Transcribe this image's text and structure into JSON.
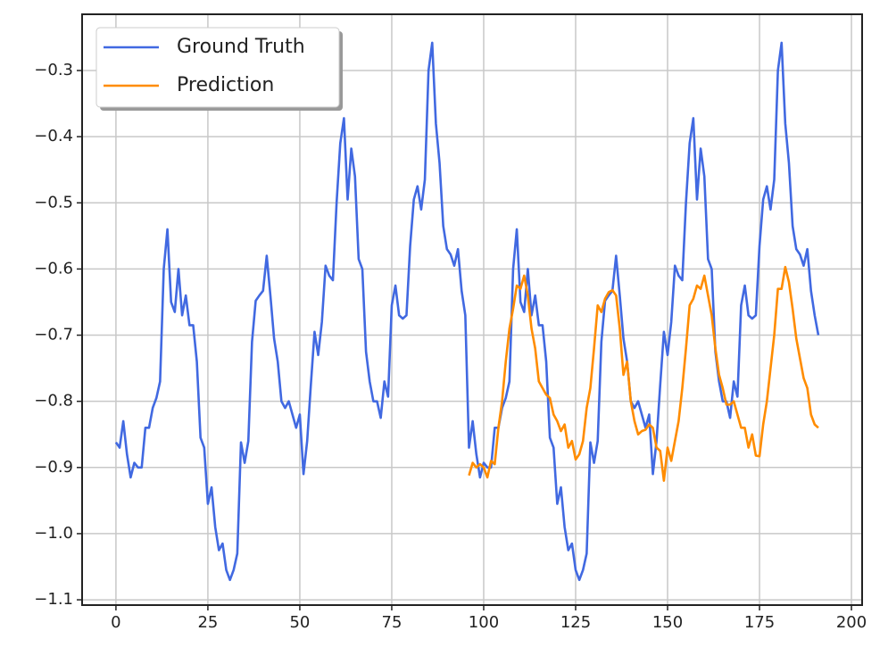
{
  "chart_data": {
    "type": "line",
    "x": [
      0,
      1,
      2,
      3,
      4,
      5,
      6,
      7,
      8,
      9,
      10,
      11,
      12,
      13,
      14,
      15,
      16,
      17,
      18,
      19,
      20,
      21,
      22,
      23,
      24,
      25,
      26,
      27,
      28,
      29,
      30,
      31,
      32,
      33,
      34,
      35,
      36,
      37,
      38,
      39,
      40,
      41,
      42,
      43,
      44,
      45,
      46,
      47,
      48,
      49,
      50,
      51,
      52,
      53,
      54,
      55,
      56,
      57,
      58,
      59,
      60,
      61,
      62,
      63,
      64,
      65,
      66,
      67,
      68,
      69,
      70,
      71,
      72,
      73,
      74,
      75,
      76,
      77,
      78,
      79,
      80,
      81,
      82,
      83,
      84,
      85,
      86,
      87,
      88,
      89,
      90,
      91,
      92,
      93,
      94,
      95,
      96,
      97,
      98,
      99,
      100,
      101,
      102,
      103,
      104,
      105,
      106,
      107,
      108,
      109,
      110,
      111,
      112,
      113,
      114,
      115,
      116,
      117,
      118,
      119,
      120,
      121,
      122,
      123,
      124,
      125,
      126,
      127,
      128,
      129,
      130,
      131,
      132,
      133,
      134,
      135,
      136,
      137,
      138,
      139,
      140,
      141,
      142,
      143,
      144,
      145,
      146,
      147,
      148,
      149,
      150,
      151,
      152,
      153,
      154,
      155,
      156,
      157,
      158,
      159,
      160,
      161,
      162,
      163,
      164,
      165,
      166,
      167,
      168,
      169,
      170,
      171,
      172,
      173,
      174,
      175,
      176,
      177,
      178,
      179,
      180,
      181,
      182,
      183,
      184,
      185,
      186,
      187,
      188,
      189,
      190,
      191
    ],
    "series": [
      {
        "name": "Ground Truth",
        "color": "#4169e1",
        "values": [
          -0.862,
          -0.87,
          -0.83,
          -0.88,
          -0.915,
          -0.893,
          -0.9,
          -0.9,
          -0.84,
          -0.84,
          -0.81,
          -0.795,
          -0.77,
          -0.6,
          -0.54,
          -0.65,
          -0.665,
          -0.6,
          -0.67,
          -0.64,
          -0.685,
          -0.685,
          -0.74,
          -0.855,
          -0.87,
          -0.955,
          -0.93,
          -0.99,
          -1.025,
          -1.015,
          -1.055,
          -1.07,
          -1.055,
          -1.03,
          -0.862,
          -0.893,
          -0.86,
          -0.71,
          -0.648,
          -0.64,
          -0.633,
          -0.58,
          -0.64,
          -0.705,
          -0.74,
          -0.8,
          -0.81,
          -0.8,
          -0.82,
          -0.84,
          -0.82,
          -0.91,
          -0.86,
          -0.775,
          -0.695,
          -0.73,
          -0.68,
          -0.595,
          -0.61,
          -0.617,
          -0.5,
          -0.41,
          -0.372,
          -0.495,
          -0.418,
          -0.46,
          -0.585,
          -0.6,
          -0.725,
          -0.77,
          -0.8,
          -0.8,
          -0.825,
          -0.77,
          -0.793,
          -0.655,
          -0.625,
          -0.67,
          -0.675,
          -0.67,
          -0.565,
          -0.495,
          -0.475,
          -0.51,
          -0.465,
          -0.3,
          -0.258,
          -0.38,
          -0.44,
          -0.535,
          -0.57,
          -0.578,
          -0.595,
          -0.57,
          -0.633,
          -0.67,
          -0.87,
          -0.83,
          -0.88,
          -0.915,
          -0.893,
          -0.9,
          -0.9,
          -0.84,
          -0.84,
          -0.81,
          -0.795,
          -0.77,
          -0.6,
          -0.54,
          -0.65,
          -0.665,
          -0.6,
          -0.67,
          -0.64,
          -0.685,
          -0.685,
          -0.74,
          -0.855,
          -0.87,
          -0.955,
          -0.93,
          -0.99,
          -1.025,
          -1.015,
          -1.055,
          -1.07,
          -1.055,
          -1.03,
          -0.862,
          -0.893,
          -0.86,
          -0.71,
          -0.648,
          -0.64,
          -0.633,
          -0.58,
          -0.64,
          -0.705,
          -0.74,
          -0.8,
          -0.81,
          -0.8,
          -0.82,
          -0.84,
          -0.82,
          -0.91,
          -0.86,
          -0.775,
          -0.695,
          -0.73,
          -0.68,
          -0.595,
          -0.61,
          -0.617,
          -0.5,
          -0.41,
          -0.372,
          -0.495,
          -0.418,
          -0.46,
          -0.585,
          -0.6,
          -0.725,
          -0.77,
          -0.8,
          -0.8,
          -0.825,
          -0.77,
          -0.793,
          -0.655,
          -0.625,
          -0.67,
          -0.675,
          -0.67,
          -0.565,
          -0.495,
          -0.475,
          -0.51,
          -0.465,
          -0.3,
          -0.258,
          -0.38,
          -0.44,
          -0.535,
          -0.57,
          -0.578,
          -0.595,
          -0.57,
          -0.633,
          -0.67,
          -0.7
        ]
      },
      {
        "name": "Prediction",
        "color": "#ff8c00",
        "values": [
          null,
          null,
          null,
          null,
          null,
          null,
          null,
          null,
          null,
          null,
          null,
          null,
          null,
          null,
          null,
          null,
          null,
          null,
          null,
          null,
          null,
          null,
          null,
          null,
          null,
          null,
          null,
          null,
          null,
          null,
          null,
          null,
          null,
          null,
          null,
          null,
          null,
          null,
          null,
          null,
          null,
          null,
          null,
          null,
          null,
          null,
          null,
          null,
          null,
          null,
          null,
          null,
          null,
          null,
          null,
          null,
          null,
          null,
          null,
          null,
          null,
          null,
          null,
          null,
          null,
          null,
          null,
          null,
          null,
          null,
          null,
          null,
          null,
          null,
          null,
          null,
          null,
          null,
          null,
          null,
          null,
          null,
          null,
          null,
          null,
          null,
          null,
          null,
          null,
          null,
          null,
          null,
          null,
          null,
          null,
          null,
          -0.912,
          -0.893,
          -0.9,
          -0.895,
          -0.9,
          -0.915,
          -0.89,
          -0.895,
          -0.84,
          -0.8,
          -0.74,
          -0.69,
          -0.66,
          -0.625,
          -0.63,
          -0.61,
          -0.64,
          -0.69,
          -0.72,
          -0.77,
          -0.78,
          -0.79,
          -0.795,
          -0.82,
          -0.83,
          -0.845,
          -0.835,
          -0.87,
          -0.86,
          -0.888,
          -0.88,
          -0.86,
          -0.81,
          -0.78,
          -0.72,
          -0.655,
          -0.665,
          -0.645,
          -0.635,
          -0.632,
          -0.64,
          -0.69,
          -0.76,
          -0.74,
          -0.8,
          -0.83,
          -0.85,
          -0.845,
          -0.843,
          -0.835,
          -0.84,
          -0.87,
          -0.875,
          -0.92,
          -0.87,
          -0.89,
          -0.86,
          -0.83,
          -0.78,
          -0.72,
          -0.655,
          -0.645,
          -0.625,
          -0.63,
          -0.61,
          -0.64,
          -0.67,
          -0.72,
          -0.76,
          -0.78,
          -0.805,
          -0.805,
          -0.8,
          -0.82,
          -0.84,
          -0.84,
          -0.87,
          -0.85,
          -0.882,
          -0.883,
          -0.835,
          -0.8,
          -0.75,
          -0.7,
          -0.63,
          -0.63,
          -0.597,
          -0.62,
          -0.66,
          -0.705,
          -0.735,
          -0.765,
          -0.78,
          -0.82,
          -0.835,
          -0.84
        ]
      }
    ],
    "xlim": [
      -9.2,
      202.9
    ],
    "ylim": [
      -1.108,
      -0.215
    ],
    "xticks": [
      0,
      25,
      50,
      75,
      100,
      125,
      150,
      175,
      200
    ],
    "yticks": [
      {
        "value": -1.1,
        "label": "−1.1"
      },
      {
        "value": -1.0,
        "label": "−1.0"
      },
      {
        "value": -0.9,
        "label": "−0.9"
      },
      {
        "value": -0.8,
        "label": "−0.8"
      },
      {
        "value": -0.7,
        "label": "−0.7"
      },
      {
        "value": -0.6,
        "label": "−0.6"
      },
      {
        "value": -0.5,
        "label": "−0.5"
      },
      {
        "value": -0.4,
        "label": "−0.4"
      },
      {
        "value": -0.3,
        "label": "−0.3"
      }
    ],
    "grid": true,
    "legend": "upper left"
  }
}
